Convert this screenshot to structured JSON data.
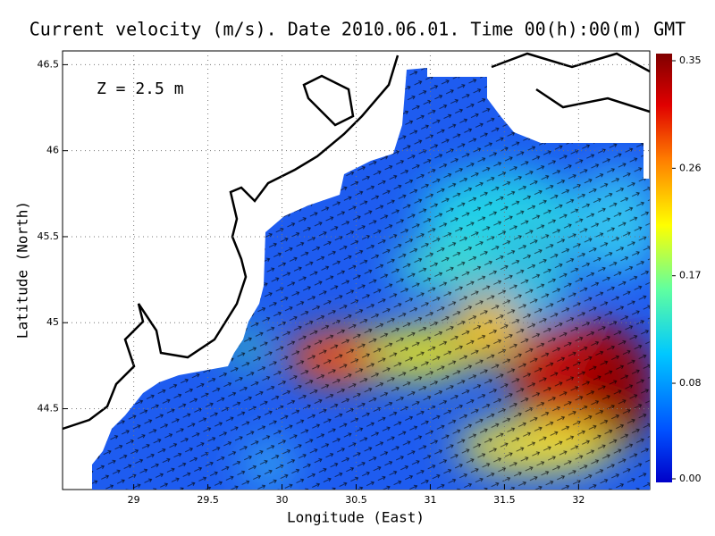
{
  "chart_data": {
    "type": "heatmap",
    "title": "Current velocity (m/s). Date 2010.06.01. Time 00(h):00(m) GMT",
    "annotation": "Z = 2.5 m",
    "x_label": "Longitude (East)",
    "y_label": "Latitude (North)",
    "xlim": [
      28.52,
      32.48
    ],
    "ylim": [
      44.03,
      46.58
    ],
    "xticks": [
      29,
      29.5,
      30,
      30.5,
      31,
      31.5,
      32
    ],
    "yticks": [
      44.5,
      45,
      45.5,
      46,
      46.5
    ],
    "grid": true,
    "clim": [
      0,
      0.35
    ],
    "cticks": [
      {
        "value": 0,
        "label": "0.00"
      },
      0.08,
      0.17,
      0.26,
      0.35
    ]
  }
}
